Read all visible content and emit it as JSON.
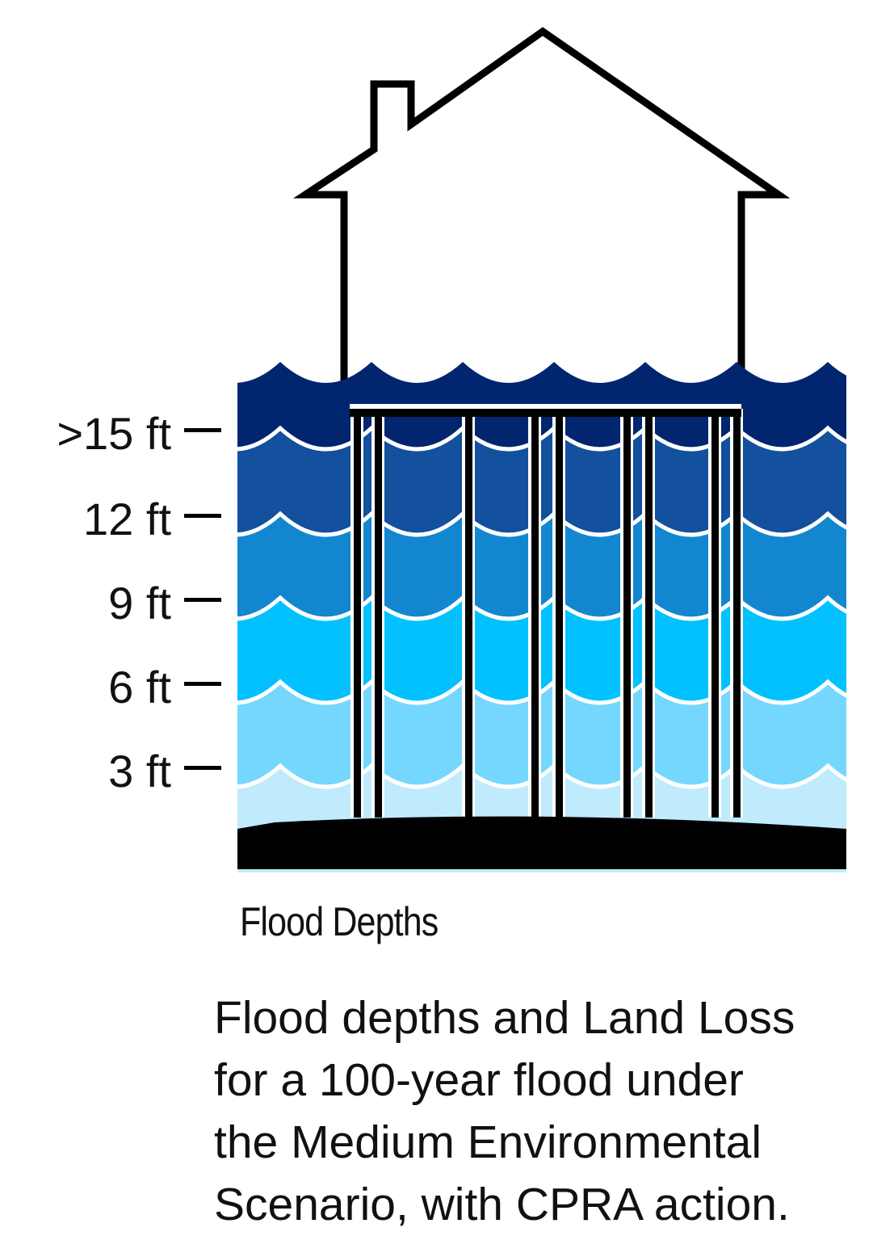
{
  "legend": {
    "title": "Flood Depths",
    "depth_labels": [
      ">15 ft",
      "12 ft",
      "9 ft",
      "6 ft",
      "3 ft"
    ],
    "band_colors": [
      "#022570",
      "#13509D",
      "#1287CF",
      "#02C1FE",
      "#75D7FE",
      "#BFEBFC"
    ],
    "ground_color": "#000000"
  },
  "caption": {
    "lines": [
      "Flood depths and Land Loss",
      "for a 100-year flood under",
      "the Medium Environmental",
      "Scenario, with CPRA action."
    ]
  }
}
